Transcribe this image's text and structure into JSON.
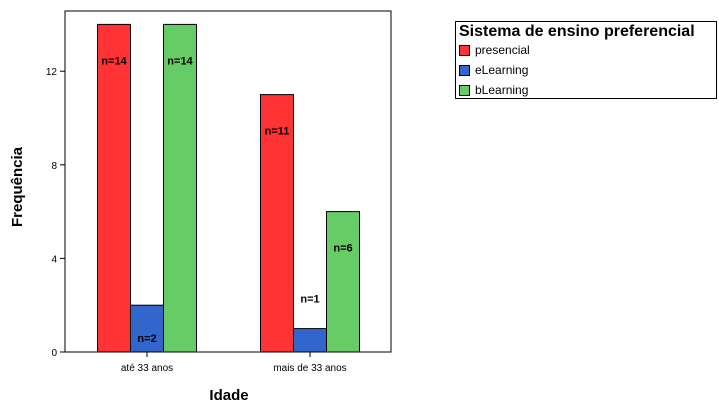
{
  "chart_data": {
    "type": "bar",
    "xlabel": "Idade",
    "ylabel": "Frequência",
    "categories": [
      "até 33 anos",
      "mais de 33 anos"
    ],
    "ylim": [
      0,
      14.5
    ],
    "yticks": [
      0,
      4,
      8,
      12
    ],
    "legend_title": "Sistema de ensino preferencial",
    "legend_position": "top-right",
    "grid": false,
    "series": [
      {
        "name": "presencial",
        "color": "#ff3333",
        "values": [
          14,
          11
        ],
        "labels": [
          "n=14",
          "n=11"
        ]
      },
      {
        "name": "eLearning",
        "color": "#3366cc",
        "values": [
          2,
          1
        ],
        "labels": [
          "n=2",
          "n=1"
        ]
      },
      {
        "name": "bLearning",
        "color": "#66cc66",
        "values": [
          14,
          6
        ],
        "labels": [
          "n=14",
          "n=6"
        ]
      }
    ]
  }
}
